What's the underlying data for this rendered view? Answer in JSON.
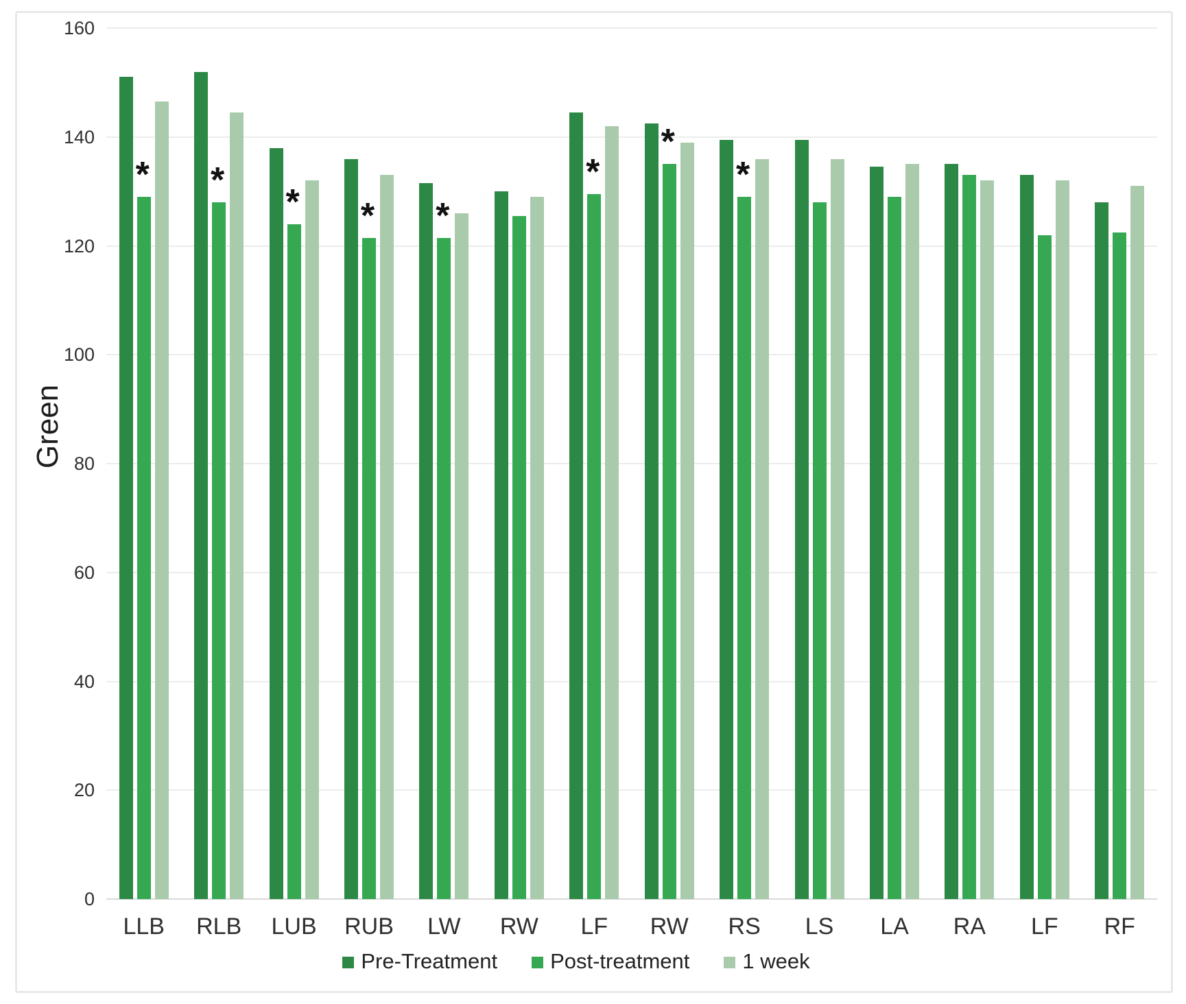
{
  "chart_data": {
    "type": "bar",
    "title": "",
    "ylabel": "Green",
    "xlabel": "",
    "ylim": [
      0,
      160
    ],
    "yticks": [
      0,
      20,
      40,
      60,
      80,
      100,
      120,
      140,
      160
    ],
    "grid": true,
    "legend_position": "bottom",
    "categories": [
      "LLB",
      "RLB",
      "LUB",
      "RUB",
      "LW",
      "RW",
      "LF",
      "RW",
      "RS",
      "LS",
      "LA",
      "RA",
      "LF",
      "RF"
    ],
    "series": [
      {
        "name": "Pre-Treatment",
        "color": "#2C8845",
        "values": [
          151,
          152,
          138,
          136,
          131.5,
          130,
          144.5,
          142.5,
          139.5,
          139.5,
          134.5,
          135,
          133,
          128
        ]
      },
      {
        "name": "Post-treatment",
        "color": "#36A852",
        "values": [
          129,
          128,
          124,
          121.5,
          121.5,
          125.5,
          129.5,
          135,
          129,
          128,
          129,
          133,
          122,
          122.5
        ]
      },
      {
        "name": "1 week",
        "color": "#A9CBAC",
        "values": [
          146.5,
          144.5,
          132,
          133,
          126,
          129,
          142,
          139,
          136,
          136,
          135,
          132,
          132,
          131
        ]
      }
    ],
    "annotations": {
      "symbol": "*",
      "meaning": "significance marker above Post-treatment bar",
      "series": "Post-treatment",
      "category_indices": [
        0,
        1,
        2,
        3,
        4,
        6,
        7,
        8
      ]
    }
  },
  "colors": {
    "background": "#ffffff",
    "frame_border": "#e8e8e8",
    "gridline": "#ececec",
    "axis_line": "#d9d9d9",
    "text": "#2f2f2f"
  }
}
